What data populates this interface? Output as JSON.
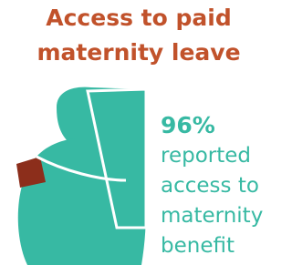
{
  "title": [
    "Access to paid",
    "maternity leave"
  ],
  "stat": "96%",
  "description": [
    "reported",
    "access to",
    "maternity",
    "benefit"
  ]
}
